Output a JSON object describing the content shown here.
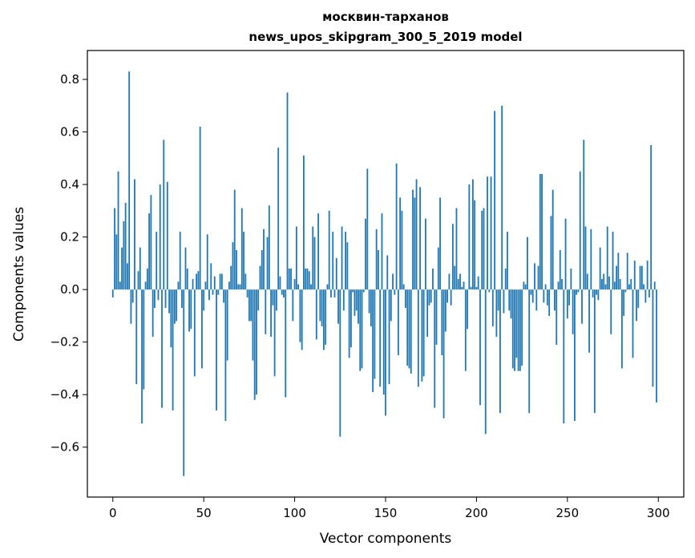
{
  "chart_data": {
    "type": "bar",
    "title": "москвин-тарханов",
    "subtitle": "news_upos_skipgram_300_5_2019 model",
    "xlabel": "Vector components",
    "ylabel": "Components values",
    "xlim": [
      -14,
      314
    ],
    "ylim": [
      -0.79,
      0.91
    ],
    "xticks": [
      0,
      50,
      100,
      150,
      200,
      250,
      300
    ],
    "yticks": [
      -0.6,
      -0.4,
      -0.2,
      0.0,
      0.2,
      0.4,
      0.6,
      0.8
    ],
    "ytick_labels": [
      "−0.6",
      "−0.4",
      "−0.2",
      "0.0",
      "0.2",
      "0.4",
      "0.6",
      "0.8"
    ],
    "grid": false,
    "bar_color": "#1f77b4",
    "values": [
      -0.03,
      0.31,
      0.21,
      0.45,
      0.03,
      0.16,
      0.26,
      0.33,
      0.1,
      0.83,
      -0.13,
      -0.05,
      0.42,
      -0.36,
      0.07,
      0.16,
      -0.51,
      -0.38,
      0.03,
      0.08,
      0.29,
      0.36,
      -0.18,
      -0.07,
      0.22,
      -0.04,
      0.4,
      -0.45,
      0.57,
      -0.07,
      0.41,
      -0.09,
      -0.22,
      -0.46,
      -0.13,
      -0.12,
      0.03,
      0.22,
      -0.07,
      -0.71,
      0.16,
      0.08,
      -0.16,
      -0.15,
      0.04,
      -0.33,
      0.06,
      0.07,
      0.62,
      -0.3,
      -0.08,
      0.03,
      0.21,
      -0.04,
      0.1,
      -0.02,
      0.05,
      -0.46,
      -0.02,
      0.06,
      0.06,
      -0.05,
      -0.5,
      -0.27,
      0.03,
      0.09,
      0.18,
      0.38,
      0.15,
      0.02,
      0.02,
      0.31,
      0.22,
      0.06,
      -0.03,
      -0.12,
      -0.12,
      -0.27,
      -0.42,
      -0.4,
      -0.08,
      0.09,
      0.15,
      0.23,
      -0.17,
      0.2,
      0.32,
      -0.18,
      -0.06,
      -0.33,
      -0.08,
      0.54,
      0.05,
      -0.02,
      -0.03,
      -0.41,
      0.75,
      0.08,
      0.08,
      -0.12,
      0.04,
      0.24,
      0.02,
      -0.2,
      -0.23,
      0.51,
      0.08,
      0.08,
      0.07,
      0.02,
      0.24,
      0.2,
      -0.19,
      0.29,
      -0.12,
      -0.14,
      -0.23,
      -0.21,
      0.02,
      0.3,
      -0.03,
      0.22,
      -0.03,
      0.12,
      -0.13,
      -0.56,
      0.24,
      -0.08,
      0.22,
      0.18,
      -0.26,
      -0.22,
      -0.01,
      -0.1,
      -0.08,
      -0.13,
      -0.31,
      -0.3,
      -0.01,
      0.27,
      0.46,
      -0.09,
      -0.14,
      -0.39,
      -0.34,
      0.23,
      0.15,
      -0.37,
      0.29,
      -0.4,
      -0.48,
      0.13,
      -0.36,
      -0.12,
      0.06,
      -0.02,
      0.48,
      -0.25,
      0.35,
      0.3,
      0.02,
      -0.07,
      -0.29,
      -0.3,
      -0.32,
      0.38,
      0.35,
      0.42,
      -0.37,
      0.39,
      -0.35,
      -0.33,
      0.27,
      -0.18,
      -0.06,
      -0.05,
      0.08,
      -0.45,
      -0.21,
      0.16,
      0.35,
      -0.25,
      -0.49,
      -0.16,
      -0.05,
      0.06,
      -0.06,
      0.25,
      0.09,
      0.31,
      0.04,
      0.06,
      0.01,
      0.03,
      -0.31,
      -0.15,
      0.4,
      0.01,
      0.42,
      0.34,
      0.01,
      0.05,
      -0.44,
      0.3,
      0.31,
      -0.55,
      0.43,
      -0.01,
      0.43,
      -0.14,
      0.68,
      -0.18,
      -0.08,
      -0.47,
      0.7,
      -0.09,
      0.08,
      0.22,
      -0.08,
      -0.11,
      -0.3,
      -0.31,
      -0.26,
      -0.31,
      -0.31,
      -0.29,
      0.03,
      0.02,
      0.2,
      -0.47,
      -0.02,
      -0.05,
      0.1,
      -0.08,
      0.09,
      0.44,
      0.44,
      -0.05,
      0.02,
      -0.06,
      -0.1,
      0.28,
      0.38,
      -0.08,
      -0.21,
      0.03,
      0.15,
      0.04,
      -0.51,
      0.27,
      -0.11,
      -0.06,
      0.08,
      -0.17,
      -0.5,
      -0.02,
      -0.01,
      0.45,
      -0.13,
      0.57,
      0.24,
      0.06,
      -0.24,
      0.23,
      -0.03,
      -0.47,
      -0.02,
      -0.04,
      0.16,
      0.04,
      0.06,
      0.02,
      0.24,
      0.05,
      -0.17,
      0.22,
      0.03,
      0.09,
      0.14,
      0.04,
      -0.3,
      -0.1,
      -0.01,
      0.14,
      0.02,
      0.04,
      -0.26,
      0.11,
      -0.12,
      -0.07,
      0.09,
      0.09,
      0.02,
      -0.05,
      0.11,
      -0.03,
      0.55,
      -0.37,
      0.03,
      -0.43
    ]
  }
}
